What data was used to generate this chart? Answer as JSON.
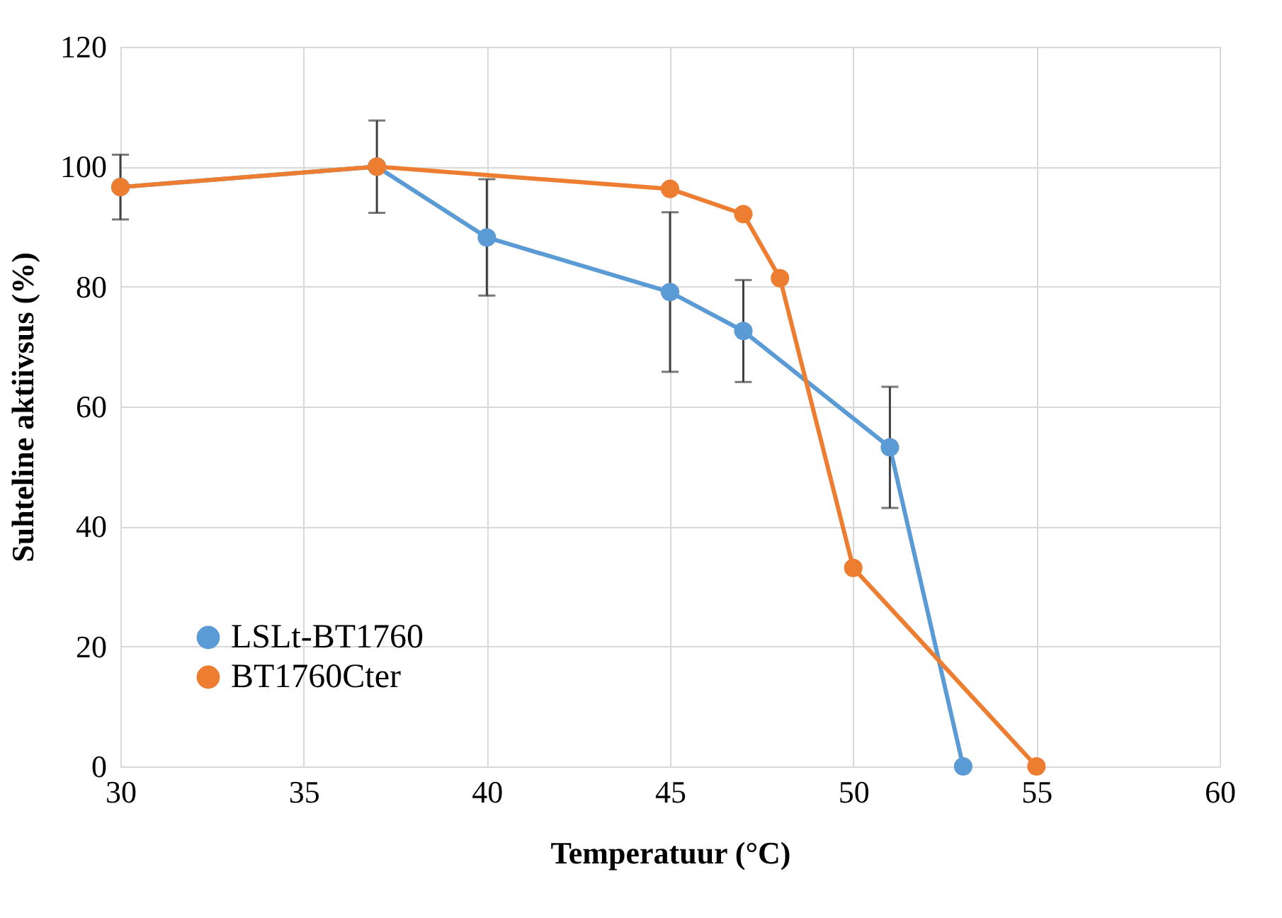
{
  "chart_data": {
    "type": "line",
    "xlabel": "Temperatuur (°C)",
    "ylabel": "Suhteline aktiivsus (%)",
    "xlim": [
      30,
      60
    ],
    "xticks": [
      30,
      35,
      40,
      45,
      50,
      55,
      60
    ],
    "ylim": [
      0,
      120
    ],
    "yticks": [
      0,
      20,
      40,
      60,
      80,
      100,
      120
    ],
    "grid": true,
    "legend": "bottom left",
    "marker": "circle",
    "line_style": "solid",
    "series": [
      {
        "name": "LSLt-BT1760",
        "color": "#5b9bd5",
        "x": [
          30,
          37,
          40,
          45,
          47,
          51,
          53
        ],
        "values": [
          96.6,
          100,
          88.2,
          79.1,
          72.6,
          53.2,
          0
        ],
        "errors": [
          5.4,
          7.7,
          9.7,
          13.3,
          8.5,
          10.1,
          null
        ]
      },
      {
        "name": "BT1760Cter",
        "color": "#ed7d31",
        "x": [
          30,
          37,
          45,
          47,
          48,
          50,
          55
        ],
        "values": [
          96.6,
          100,
          96.3,
          92.1,
          81.4,
          33.1,
          0
        ]
      }
    ]
  }
}
